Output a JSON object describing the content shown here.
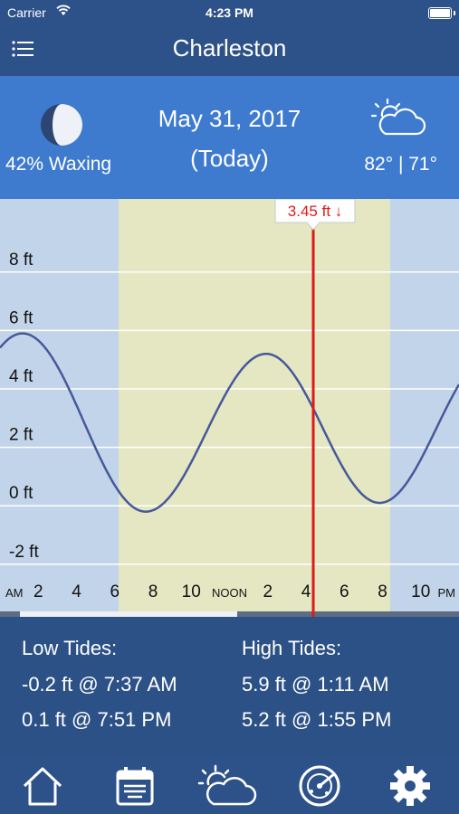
{
  "status_bar": {
    "carrier": "Carrier",
    "time": "4:23 PM"
  },
  "nav": {
    "title": "Charleston",
    "menu_icon": "menu-icon"
  },
  "moon": {
    "text": "42% Waxing",
    "icon": "moon-icon"
  },
  "date": {
    "main": "May 31, 2017",
    "sub": "(Today)"
  },
  "weather": {
    "temps": "82° | 71°",
    "icon": "partly-cloudy-icon"
  },
  "chart_data": {
    "type": "line",
    "title": "",
    "y_tick_labels": [
      "8 ft",
      "6 ft",
      "4 ft",
      "2 ft",
      "0 ft",
      "-2 ft"
    ],
    "y_ticks": [
      8,
      6,
      4,
      2,
      0,
      -2
    ],
    "ylim": [
      -2.5,
      10.5
    ],
    "xlim": [
      0,
      24
    ],
    "x_tick_labels": [
      {
        "h": 0,
        "label": "AM",
        "small": true
      },
      {
        "h": 2,
        "label": "2"
      },
      {
        "h": 4,
        "label": "4"
      },
      {
        "h": 6,
        "label": "6"
      },
      {
        "h": 8,
        "label": "8"
      },
      {
        "h": 10,
        "label": "10"
      },
      {
        "h": 12,
        "label": "NOON",
        "small": true
      },
      {
        "h": 14,
        "label": "2"
      },
      {
        "h": 16,
        "label": "4"
      },
      {
        "h": 18,
        "label": "6"
      },
      {
        "h": 20,
        "label": "8"
      },
      {
        "h": 22,
        "label": "10"
      },
      {
        "h": 24,
        "label": "PM",
        "small": true
      }
    ],
    "daylight_hours": [
      6.2,
      20.4
    ],
    "current_hour": 16.38,
    "current_label": "3.45 ft ↓",
    "series": [
      {
        "values": [
          {
            "x": 1.18,
            "y": 5.9
          },
          {
            "x": 7.62,
            "y": -0.2
          },
          {
            "x": 13.92,
            "y": 5.2
          },
          {
            "x": 19.85,
            "y": 0.1
          }
        ]
      }
    ],
    "colors": {
      "night": "#c2d4e9",
      "day": "#e4e7c1",
      "line": "#45599b",
      "grid": "#ffffff",
      "current": "#e01a1a"
    }
  },
  "tides": {
    "low_header": "Low Tides:",
    "high_header": "High Tides:",
    "low": [
      "-0.2 ft @ 7:37 AM",
      "0.1 ft @ 7:51 PM"
    ],
    "high": [
      "5.9 ft @ 1:11 AM",
      "5.2 ft @ 1:55 PM"
    ]
  },
  "tab_bar": {
    "items": [
      {
        "icon": "home-icon"
      },
      {
        "icon": "calendar-icon"
      },
      {
        "icon": "weather-icon"
      },
      {
        "icon": "radar-icon"
      },
      {
        "icon": "gear-icon"
      }
    ]
  }
}
